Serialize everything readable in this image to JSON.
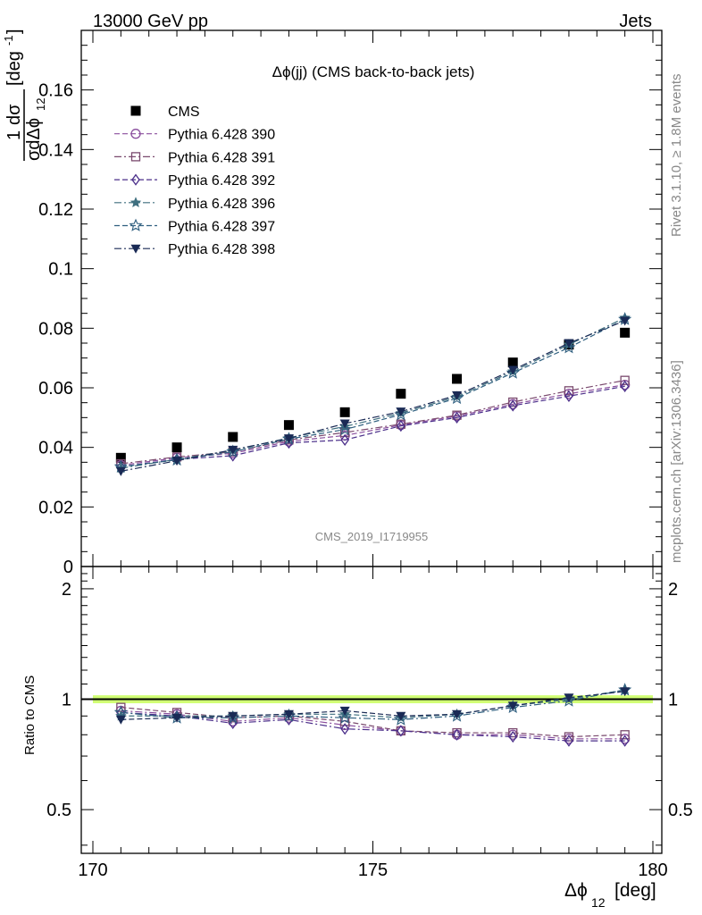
{
  "header": {
    "left": "13000 GeV pp",
    "right": "Jets"
  },
  "side_labels": {
    "rivet": "Rivet 3.1.10, ≥ 1.8M events",
    "mcplots": "mcplots.cern.ch [arXiv:1306.3436]"
  },
  "colors": {
    "cms": "#000000",
    "p390": "#8b4f9e",
    "p391": "#7a4a6e",
    "p392": "#4b2f8a",
    "p396": "#3f6f7f",
    "p397": "#2f5f7f",
    "p398": "#1a2a55",
    "band": "#ccff66"
  },
  "chart_data": [
    {
      "type": "scatter",
      "title": "Δϕ(jj) (CMS back-to-back jets)",
      "watermark": "CMS_2019_I1719955",
      "xlabel": "Δϕ",
      "xlabel_sub": "12",
      "xlabel_unit": "[deg]",
      "ylabel": "1 dσ / σ dΔϕ_12 [deg^-1]",
      "xlim": [
        170,
        180
      ],
      "ylim": [
        0,
        0.18
      ],
      "xticks": [
        170,
        175,
        180
      ],
      "yticks": [
        0,
        0.02,
        0.04,
        0.06,
        0.08,
        0.1,
        0.12,
        0.14,
        0.16
      ],
      "ytick_labels": [
        "0",
        "0.02",
        "0.04",
        "0.06",
        "0.08",
        "0.1",
        "0.12",
        "0.14",
        "0.16"
      ],
      "legend_position": "top-left",
      "x": [
        170.5,
        171.5,
        172.5,
        173.5,
        174.5,
        175.5,
        176.5,
        177.5,
        178.5,
        179.5
      ],
      "series": [
        {
          "name": "CMS",
          "marker": "filled-square",
          "color_key": "cms",
          "line": false,
          "values": [
            0.0365,
            0.04,
            0.0435,
            0.0475,
            0.0518,
            0.058,
            0.063,
            0.0685,
            0.0745,
            0.0785
          ]
        },
        {
          "name": "Pythia 6.428 390",
          "marker": "open-circle",
          "color_key": "p390",
          "line": true,
          "values": [
            0.034,
            0.0365,
            0.038,
            0.042,
            0.044,
            0.0475,
            0.0505,
            0.0545,
            0.058,
            0.061
          ]
        },
        {
          "name": "Pythia 6.428 391",
          "marker": "open-square",
          "color_key": "p391",
          "line": true,
          "values": [
            0.0345,
            0.0368,
            0.0385,
            0.0425,
            0.045,
            0.0478,
            0.0508,
            0.0552,
            0.059,
            0.0625
          ]
        },
        {
          "name": "Pythia 6.428 392",
          "marker": "open-diamond",
          "color_key": "p392",
          "line": true,
          "values": [
            0.0335,
            0.036,
            0.0372,
            0.0415,
            0.0425,
            0.0472,
            0.05,
            0.054,
            0.0572,
            0.0605
          ]
        },
        {
          "name": "Pythia 6.428 396",
          "marker": "filled-star",
          "color_key": "p396",
          "line": true,
          "values": [
            0.033,
            0.036,
            0.039,
            0.0432,
            0.047,
            0.0515,
            0.057,
            0.0655,
            0.0745,
            0.0835
          ]
        },
        {
          "name": "Pythia 6.428 397",
          "marker": "open-star",
          "color_key": "p397",
          "line": true,
          "values": [
            0.0335,
            0.0358,
            0.0385,
            0.0428,
            0.046,
            0.051,
            0.0565,
            0.065,
            0.0735,
            0.083
          ]
        },
        {
          "name": "Pythia 6.428 398",
          "marker": "filled-triangle-down",
          "color_key": "p398",
          "line": true,
          "values": [
            0.032,
            0.0355,
            0.0392,
            0.043,
            0.048,
            0.052,
            0.0575,
            0.066,
            0.075,
            0.0825
          ]
        }
      ]
    },
    {
      "type": "line",
      "ylabel": "Ratio to CMS",
      "xlim": [
        170,
        180
      ],
      "ylim": [
        0.38,
        2.3
      ],
      "yscale": "log",
      "yticks": [
        0.5,
        1,
        2
      ],
      "ytick_labels": [
        "0.5",
        "1",
        "2"
      ],
      "reference_line": 1,
      "band": [
        0.975,
        1.025
      ],
      "x": [
        170.5,
        171.5,
        172.5,
        173.5,
        174.5,
        175.5,
        176.5,
        177.5,
        178.5,
        179.5
      ],
      "series": [
        {
          "name": "Pythia 6.428 390",
          "values": [
            0.93,
            0.91,
            0.87,
            0.89,
            0.85,
            0.82,
            0.8,
            0.8,
            0.78,
            0.78
          ]
        },
        {
          "name": "Pythia 6.428 391",
          "values": [
            0.95,
            0.92,
            0.89,
            0.9,
            0.87,
            0.82,
            0.81,
            0.81,
            0.79,
            0.8
          ]
        },
        {
          "name": "Pythia 6.428 392",
          "values": [
            0.92,
            0.9,
            0.86,
            0.88,
            0.83,
            0.82,
            0.8,
            0.79,
            0.77,
            0.77
          ]
        },
        {
          "name": "Pythia 6.428 396",
          "values": [
            0.9,
            0.9,
            0.9,
            0.91,
            0.91,
            0.89,
            0.91,
            0.96,
            1.0,
            1.06
          ]
        },
        {
          "name": "Pythia 6.428 397",
          "values": [
            0.92,
            0.89,
            0.89,
            0.9,
            0.89,
            0.88,
            0.9,
            0.95,
            0.99,
            1.06
          ]
        },
        {
          "name": "Pythia 6.428 398",
          "values": [
            0.88,
            0.89,
            0.9,
            0.91,
            0.93,
            0.9,
            0.91,
            0.96,
            1.01,
            1.05
          ]
        }
      ]
    }
  ]
}
